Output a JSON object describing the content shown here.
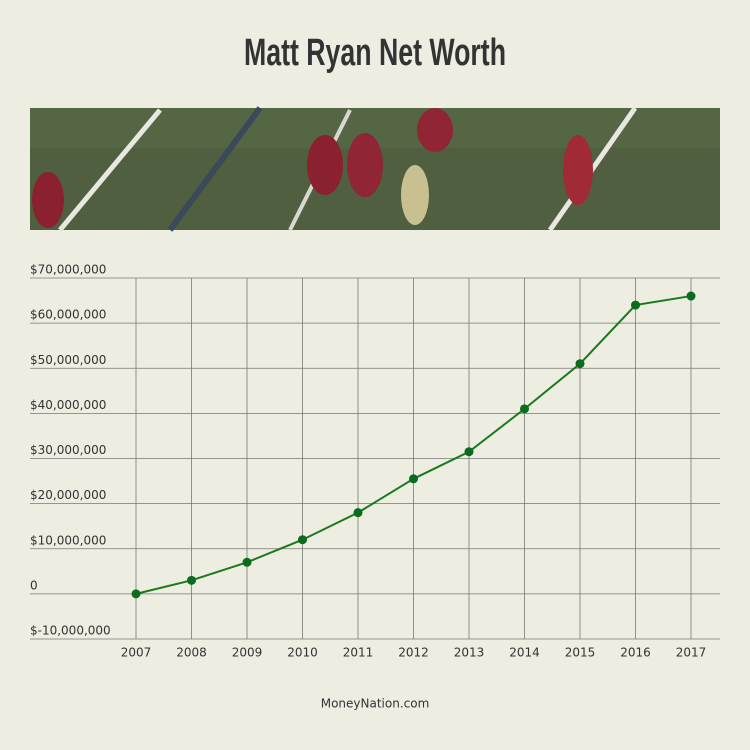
{
  "chart_data": {
    "type": "line",
    "title": "Matt Ryan Net Worth",
    "source": "MoneyNation.com",
    "categories": [
      "2007",
      "2008",
      "2009",
      "2010",
      "2011",
      "2012",
      "2013",
      "2014",
      "2015",
      "2016",
      "2017"
    ],
    "series": [
      {
        "name": "Net Worth",
        "color": "#1a7a1a",
        "values": [
          0,
          3000000,
          7000000,
          12000000,
          18000000,
          25500000,
          31500000,
          41000000,
          51000000,
          64000000,
          66000000
        ]
      }
    ],
    "ylim": [
      -10000000,
      70000000
    ],
    "yticks": [
      {
        "value": -10000000,
        "label": "$-10,000,000"
      },
      0,
      {
        "value": 10000000,
        "label": "$10,000,000"
      },
      {
        "value": 20000000,
        "label": "$20,000,000"
      },
      {
        "value": 30000000,
        "label": "$30,000,000"
      },
      {
        "value": 40000000,
        "label": "$40,000,000"
      },
      {
        "value": 50000000,
        "label": "$50,000,000"
      },
      {
        "value": 60000000,
        "label": "$60,000,000"
      },
      {
        "value": 70000000,
        "label": "$70,000,000"
      }
    ],
    "grid": true
  }
}
